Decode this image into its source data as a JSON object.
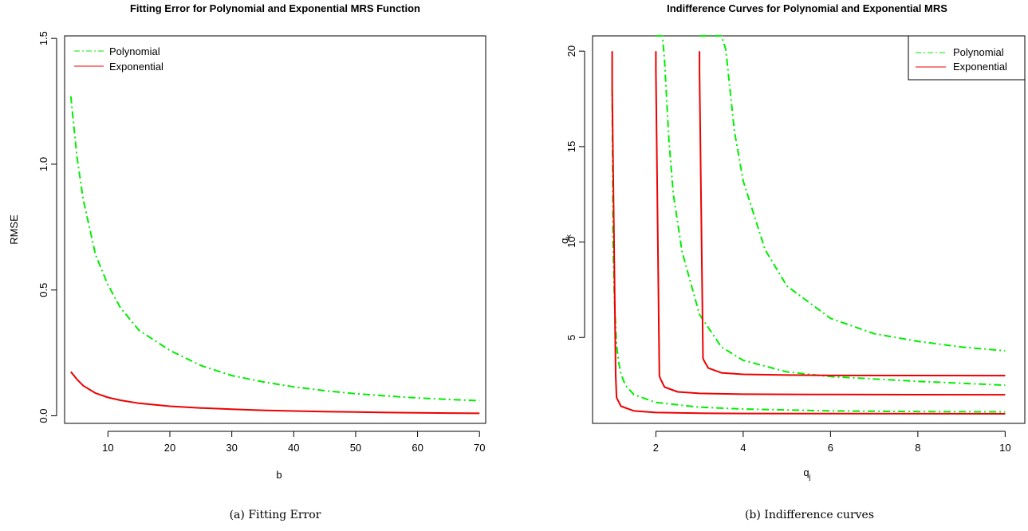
{
  "colors": {
    "polynomial": "#00ee00",
    "exponential": "#ee0000"
  },
  "chart_data": [
    {
      "type": "line",
      "title": "Fitting Error for Polynomial and Exponential MRS Function",
      "xlabel": "b",
      "ylabel": "RMSE",
      "xlim": [
        3,
        71
      ],
      "ylim": [
        -0.03,
        1.51
      ],
      "xticks": [
        "10",
        "20",
        "30",
        "40",
        "50",
        "60",
        "70"
      ],
      "yticks": [
        "0.0",
        "0.5",
        "1.0",
        "1.5"
      ],
      "legend": {
        "position": "top-left",
        "entries": [
          "Polynomial",
          "Exponential"
        ]
      },
      "series": [
        {
          "name": "Polynomial",
          "style": "dashdot",
          "x": [
            4,
            5,
            6,
            8,
            10,
            12,
            15,
            20,
            25,
            30,
            35,
            40,
            45,
            50,
            55,
            60,
            65,
            70
          ],
          "y": [
            1.27,
            1.03,
            0.86,
            0.64,
            0.52,
            0.43,
            0.34,
            0.26,
            0.2,
            0.16,
            0.135,
            0.115,
            0.1,
            0.088,
            0.079,
            0.071,
            0.065,
            0.06
          ]
        },
        {
          "name": "Exponential",
          "style": "solid",
          "x": [
            4,
            5,
            6,
            8,
            10,
            12,
            15,
            20,
            25,
            30,
            35,
            40,
            45,
            50,
            55,
            60,
            65,
            70
          ],
          "y": [
            0.175,
            0.145,
            0.12,
            0.09,
            0.073,
            0.062,
            0.05,
            0.038,
            0.031,
            0.026,
            0.022,
            0.019,
            0.017,
            0.015,
            0.013,
            0.012,
            0.011,
            0.01
          ]
        }
      ]
    },
    {
      "type": "line",
      "title": "Indifference Curves for Polynomial and Exponential MRS",
      "xlabel": "q",
      "xlabel_sub": "j",
      "ylabel": "q",
      "ylabel_sub": "k",
      "xlim": [
        0.55,
        10.45
      ],
      "ylim": [
        0.5,
        20.8
      ],
      "xticks": [
        "2",
        "4",
        "6",
        "8",
        "10"
      ],
      "yticks": [
        "5",
        "10",
        "15",
        "20"
      ],
      "legend": {
        "position": "top-right",
        "entries": [
          "Polynomial",
          "Exponential"
        ]
      },
      "series": [
        {
          "name": "Polynomial",
          "style": "dashdot",
          "x": [
            1.0,
            1.02,
            1.05,
            1.1,
            1.15,
            1.2,
            1.3,
            1.5,
            2,
            3,
            4,
            6,
            8,
            10
          ],
          "y": [
            18,
            10,
            7,
            4.6,
            3.7,
            3.1,
            2.5,
            2.0,
            1.6,
            1.35,
            1.25,
            1.15,
            1.12,
            1.1
          ]
        },
        {
          "name": "Polynomial",
          "style": "dashdot",
          "x": [
            2.0,
            2.05,
            2.1,
            2.15,
            2.2,
            2.3,
            2.4,
            2.6,
            3,
            3.5,
            4,
            5,
            6,
            8,
            10
          ],
          "y": [
            20.8,
            20.8,
            20.8,
            20.8,
            19.5,
            15.3,
            12.5,
            9.5,
            6.2,
            4.5,
            3.8,
            3.2,
            2.95,
            2.7,
            2.5
          ]
        },
        {
          "name": "Polynomial",
          "style": "dashdot",
          "x": [
            3.0,
            3.2,
            3.4,
            3.5,
            3.6,
            3.8,
            4,
            4.5,
            5,
            6,
            7,
            8,
            9,
            10
          ],
          "y": [
            20.8,
            20.8,
            20.8,
            20.8,
            20.1,
            15.8,
            13.2,
            9.6,
            7.7,
            6.0,
            5.2,
            4.8,
            4.5,
            4.3
          ]
        },
        {
          "name": "Exponential",
          "style": "solid",
          "x": [
            1.0,
            1.0,
            1.08,
            1.1,
            1.2,
            1.5,
            2,
            3,
            4,
            6,
            8,
            10
          ],
          "y": [
            20,
            18,
            3,
            1.85,
            1.4,
            1.15,
            1.07,
            1.03,
            1.02,
            1.01,
            1.005,
            1.0
          ]
        },
        {
          "name": "Exponential",
          "style": "solid",
          "x": [
            2.0,
            2.0,
            2.08,
            2.1,
            2.2,
            2.5,
            3,
            4,
            6,
            8,
            10
          ],
          "y": [
            20,
            19,
            3,
            2.85,
            2.4,
            2.15,
            2.07,
            2.03,
            2.01,
            2.005,
            2.0
          ]
        },
        {
          "name": "Exponential",
          "style": "solid",
          "x": [
            3.0,
            3.0,
            3.08,
            3.1,
            3.2,
            3.5,
            4,
            5,
            6,
            8,
            10
          ],
          "y": [
            20,
            19,
            3.9,
            3.8,
            3.4,
            3.15,
            3.07,
            3.03,
            3.01,
            3.005,
            3.0
          ]
        }
      ]
    }
  ],
  "captions": {
    "left": "(a) Fitting Error",
    "right": "(b) Indifference curves"
  }
}
